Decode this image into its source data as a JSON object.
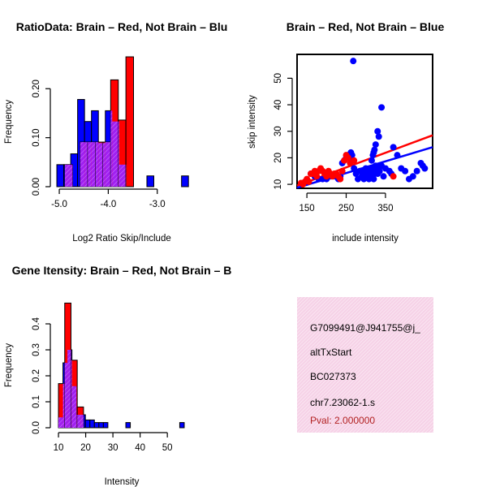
{
  "colors": {
    "red": "#ff0000",
    "blue": "#0000ff",
    "purple": "#a020f0",
    "panel_bg": "#f6d2e7"
  },
  "chart_data": [
    {
      "id": "ratio",
      "type": "bar",
      "title": "RatioData: Brain – Red, Not Brain – Blu",
      "xlabel": "Log2 Ratio Skip/Include",
      "ylabel": "Frequency",
      "xlim": [
        -5.1,
        -2.35
      ],
      "ylim": [
        0,
        0.27
      ],
      "xticks": [
        -5.0,
        -4.0,
        -3.0
      ],
      "xtick_labels": [
        "-5.0",
        "-4.0",
        "-3.0"
      ],
      "yticks": [
        0.0,
        0.1,
        0.2
      ],
      "ytick_labels": [
        "0.00",
        "0.10",
        "0.20"
      ],
      "series": [
        {
          "name": "Not Brain",
          "color": "blue",
          "bin_start": -5.05,
          "bin_width": 0.1414,
          "values": [
            0.045,
            0.045,
            0.067,
            0.178,
            0.133,
            0.155,
            0.089,
            0.155,
            0.133,
            0.045,
            0,
            0,
            0,
            0.022,
            0,
            0,
            0,
            0,
            0.022
          ]
        },
        {
          "name": "Brain",
          "color": "red",
          "bin_start": -4.885,
          "bin_width": 0.1556,
          "values": [
            0.045,
            0,
            0.091,
            0.091,
            0.091,
            0.091,
            0.218,
            0.136,
            0.265
          ]
        }
      ]
    },
    {
      "id": "scatter",
      "type": "scatter",
      "title": "Brain – Red, Not Brain – Blue",
      "xlabel": "include intensity",
      "ylabel": "skip intensity",
      "xlim": [
        125,
        470
      ],
      "ylim": [
        8.5,
        59
      ],
      "xticks": [
        150,
        250,
        350
      ],
      "xtick_labels": [
        "150",
        "250",
        "350"
      ],
      "yticks": [
        10,
        20,
        30,
        40,
        50
      ],
      "ytick_labels": [
        "10",
        "20",
        "30",
        "40",
        "50"
      ],
      "series": [
        {
          "name": "Not Brain",
          "color": "blue",
          "x": [
            268,
            340,
            330,
            333,
            325,
            322,
            320,
            318,
            315,
            240,
            245,
            250,
            255,
            258,
            262,
            265,
            270,
            275,
            280,
            285,
            290,
            292,
            295,
            298,
            300,
            302,
            305,
            308,
            310,
            312,
            315,
            318,
            320,
            322,
            325,
            328,
            330,
            335,
            340,
            345,
            350,
            360,
            365,
            370,
            380,
            390,
            400,
            410,
            420,
            430,
            440,
            445,
            450,
            160,
            170,
            180,
            190,
            200,
            210,
            220,
            230,
            235
          ],
          "y": [
            56.5,
            39,
            30,
            28,
            25,
            23,
            22,
            21,
            19,
            18,
            19,
            20,
            21,
            20,
            22,
            21,
            16,
            14,
            12,
            15,
            13,
            15,
            12,
            14,
            16,
            13,
            15,
            12,
            14,
            16,
            13,
            15,
            12,
            14,
            17,
            16,
            14,
            15,
            17,
            13,
            16,
            15,
            14,
            24,
            21,
            16,
            15,
            12,
            13,
            15,
            18,
            17,
            16,
            14,
            13,
            12,
            12,
            12,
            13,
            13,
            12,
            13
          ]
        },
        {
          "name": "Brain",
          "color": "red",
          "x": [
            135,
            140,
            145,
            150,
            155,
            160,
            165,
            170,
            175,
            180,
            185,
            190,
            195,
            200,
            205,
            210,
            215,
            220,
            225,
            230,
            235,
            240,
            245,
            250,
            255,
            260,
            270,
            370
          ],
          "y": [
            10.5,
            10,
            11,
            12,
            11,
            14,
            14,
            15,
            13,
            15,
            16,
            15,
            14,
            13,
            15,
            14,
            13,
            14,
            14,
            13,
            12,
            15,
            19,
            21,
            20,
            18,
            19,
            13
          ]
        }
      ],
      "fits": [
        {
          "color": "red",
          "x1": 125,
          "y1": 9.5,
          "x2": 470,
          "y2": 28.5
        },
        {
          "color": "blue",
          "x1": 125,
          "y1": 8.7,
          "x2": 470,
          "y2": 24
        }
      ]
    },
    {
      "id": "intensity",
      "type": "bar",
      "title": "Gene Itensity: Brain – Red, Not Brain – B",
      "xlabel": "Intensity",
      "ylabel": "Frequency",
      "xlim": [
        8.5,
        58
      ],
      "ylim": [
        0,
        0.5
      ],
      "xticks": [
        10,
        20,
        30,
        40,
        50
      ],
      "xtick_labels": [
        "10",
        "20",
        "30",
        "40",
        "50"
      ],
      "yticks": [
        0.0,
        0.1,
        0.2,
        0.3,
        0.4
      ],
      "ytick_labels": [
        "0.0",
        "0.1",
        "0.2",
        "0.3",
        "0.4"
      ],
      "series": [
        {
          "name": "Not Brain",
          "color": "blue",
          "bin_start": 10,
          "bin_width": 1.65,
          "values": [
            0.04,
            0.25,
            0.3,
            0.16,
            0.05,
            0.05,
            0.03,
            0.03,
            0.02,
            0.02,
            0.02,
            0,
            0,
            0,
            0,
            0.02,
            0,
            0,
            0,
            0,
            0,
            0,
            0,
            0,
            0,
            0,
            0,
            0.02
          ]
        },
        {
          "name": "Brain",
          "color": "red",
          "bin_start": 10,
          "bin_width": 2.3,
          "values": [
            0.17,
            0.48,
            0.26,
            0.08
          ]
        }
      ]
    }
  ],
  "info_panel": {
    "lines": [
      "G7099491@J941755@j_",
      "altTxStart",
      "BC027373",
      "chr7.23062-1.s"
    ],
    "pval": "Pval: 2.000000",
    "pval_color": "#b22222"
  }
}
